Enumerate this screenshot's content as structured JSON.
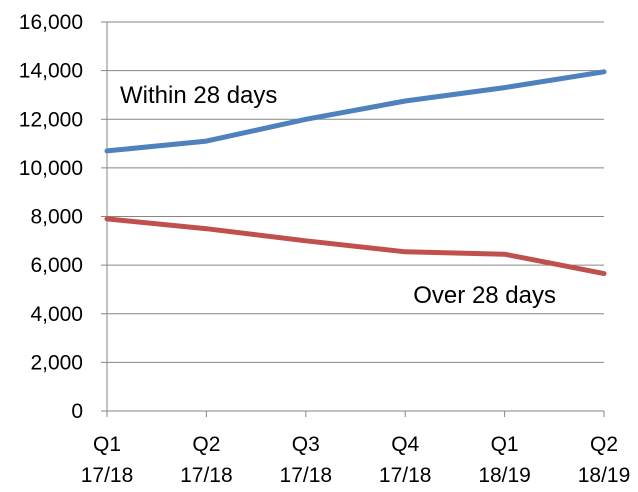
{
  "chart_data": {
    "type": "line",
    "categories": [
      [
        "Q1",
        "17/18"
      ],
      [
        "Q2",
        "17/18"
      ],
      [
        "Q3",
        "17/18"
      ],
      [
        "Q4",
        "17/18"
      ],
      [
        "Q1",
        "18/19"
      ],
      [
        "Q2",
        "18/19"
      ]
    ],
    "y_ticks": [
      "0",
      "2,000",
      "4,000",
      "6,000",
      "8,000",
      "10,000",
      "12,000",
      "14,000",
      "16,000"
    ],
    "ylim": [
      0,
      16000
    ],
    "grid": true,
    "series": [
      {
        "name": "Within 28 days",
        "color": "#4f81bd",
        "values": [
          10700,
          11100,
          12000,
          12750,
          13300,
          13950
        ]
      },
      {
        "name": "Over 28 days",
        "color": "#c0504d",
        "values": [
          7900,
          7500,
          7000,
          6550,
          6450,
          5650
        ]
      }
    ]
  }
}
